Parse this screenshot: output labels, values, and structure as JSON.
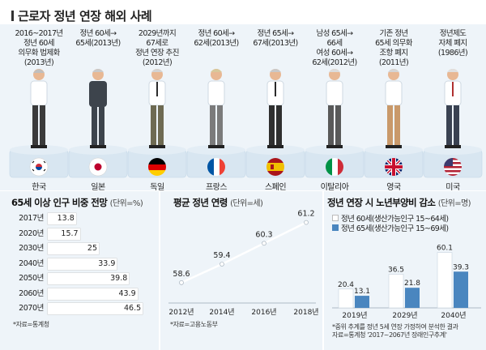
{
  "title": "근로자 정년 연장 해외 사례",
  "countries": [
    {
      "name": "한국",
      "caption": "2016~2017년\n정년 60세\n의무화 법제화\n(2013년)",
      "flag": "korea-flag-icon"
    },
    {
      "name": "일본",
      "caption": "정년 60세→\n65세(2013년)",
      "flag": "japan-flag-icon"
    },
    {
      "name": "독일",
      "caption": "2029년까지\n67세로\n정년 연장 추진\n(2012년)",
      "flag": "germany-flag-icon"
    },
    {
      "name": "프랑스",
      "caption": "정년 60세→\n62세(2013년)",
      "flag": "france-flag-icon"
    },
    {
      "name": "스페인",
      "caption": "정년 65세→\n67세(2013년)",
      "flag": "spain-flag-icon"
    },
    {
      "name": "이탈리아",
      "caption": "남성 65세→\n66세\n여성 60세→\n62세(2012년)",
      "flag": "italy-flag-icon"
    },
    {
      "name": "영국",
      "caption": "기존 정년\n65세 의무화\n조항 폐지\n(2011년)",
      "flag": "uk-flag-icon"
    },
    {
      "name": "미국",
      "caption": "정년제도\n자체 폐지\n(1986년)",
      "flag": "usa-flag-icon"
    }
  ],
  "colors": {
    "bg": "#e8f1f8",
    "hbar": "#ffffff",
    "bar_60": "#ffffff",
    "bar_65": "#4a86bf",
    "line": "#ffffff",
    "base": "#d4e3ef"
  },
  "chart_data": [
    {
      "type": "bar",
      "orientation": "horizontal",
      "title": "65세 이상 인구 비중 전망",
      "unit": "(단위=%)",
      "categories": [
        "2017년",
        "2020년",
        "2030년",
        "2040년",
        "2050년",
        "2060년",
        "2070년"
      ],
      "values": [
        13.8,
        15.7,
        25,
        33.9,
        39.8,
        43.9,
        46.5
      ],
      "source": "*자료=통계청"
    },
    {
      "type": "line",
      "title": "평균 정년 연령",
      "unit": "(단위=세)",
      "x": [
        "2012년",
        "2014년",
        "2016년",
        "2018년"
      ],
      "values": [
        58.6,
        59.4,
        60.3,
        61.2
      ],
      "source": "*자료=고용노동부"
    },
    {
      "type": "bar",
      "title": "정년 연장 시 노년부양비 감소",
      "unit": "(단위=명)",
      "categories": [
        "2019년",
        "2029년",
        "2040년"
      ],
      "series": [
        {
          "name": "정년 60세(생산가능인구 15~64세)",
          "values": [
            20.4,
            36.5,
            60.1
          ]
        },
        {
          "name": "정년 65세(생산가능인구 15~69세)",
          "values": [
            13.1,
            21.8,
            39.3
          ]
        }
      ],
      "note": "*중위 추계를 정년 5세 연장 가정하여 분석한 결과",
      "source": "자료=통계청 '2017~2067년 장래인구추계'"
    }
  ]
}
